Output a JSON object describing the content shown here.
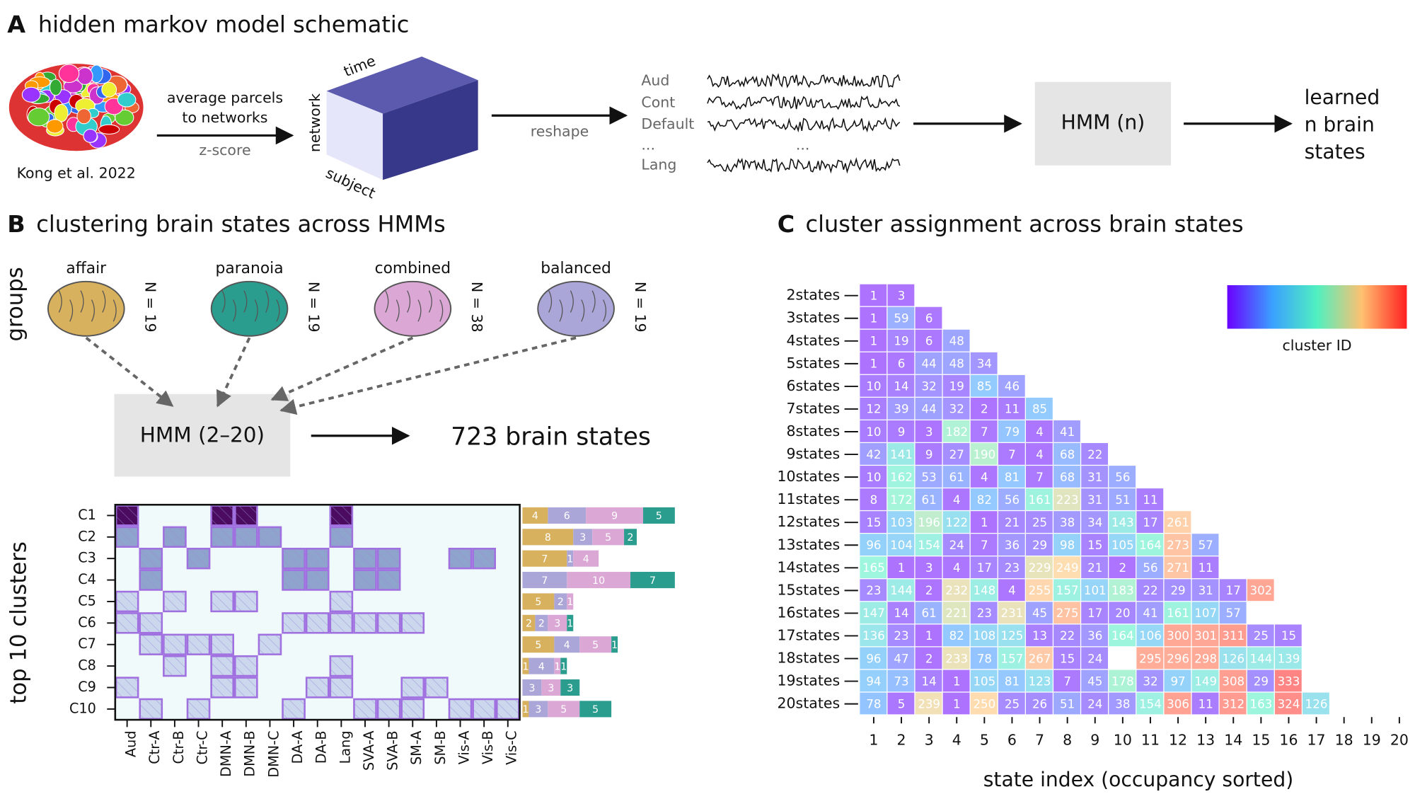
{
  "panel_a": {
    "letter": "A",
    "title": "hidden markov model schematic",
    "credit": "Kong et al. 2022",
    "step1": [
      "average parcels",
      "to networks"
    ],
    "zscore": "z-score",
    "cube": {
      "time": "time",
      "network": "network",
      "subject": "subject"
    },
    "reshape": "reshape",
    "signals": [
      "Aud",
      "Cont",
      "Default",
      "...",
      "Lang"
    ],
    "ellipsis": "...",
    "hmm": "HMM (n)",
    "output": [
      "learned",
      "n brain",
      "states"
    ]
  },
  "panel_b": {
    "letter": "B",
    "title": "clustering brain states across HMMs",
    "groups_label": "groups",
    "hmm": "HMM (2–20)",
    "result": "723 brain states",
    "ylabel": "top 10 clusters",
    "clusters": [
      "C1",
      "C2",
      "C3",
      "C4",
      "C5",
      "C6",
      "C7",
      "C8",
      "C9",
      "C10"
    ],
    "networks": [
      "Aud",
      "Ctr-A",
      "Ctr-B",
      "Ctr-C",
      "DMN-A",
      "DMN-B",
      "DMN-C",
      "DA-A",
      "DA-B",
      "Lang",
      "SVA-A",
      "SVA-B",
      "SM-A",
      "SM-B",
      "Vis-A",
      "Vis-B",
      "Vis-C"
    ],
    "level_colors": [
      "#f0fafa",
      "#cbd7ec",
      "#8fa4cc",
      "#4b0b5f"
    ],
    "membership": [
      [
        3,
        0,
        0,
        0,
        3,
        3,
        0,
        0,
        0,
        3,
        0,
        0,
        0,
        0,
        0,
        0,
        0
      ],
      [
        2,
        0,
        2,
        0,
        2,
        2,
        2,
        0,
        0,
        2,
        0,
        0,
        0,
        0,
        0,
        0,
        0
      ],
      [
        0,
        2,
        0,
        2,
        0,
        0,
        0,
        2,
        2,
        0,
        2,
        2,
        0,
        0,
        2,
        2,
        0
      ],
      [
        0,
        2,
        0,
        0,
        0,
        0,
        0,
        2,
        2,
        0,
        2,
        2,
        0,
        0,
        0,
        0,
        0
      ],
      [
        1,
        0,
        1,
        0,
        1,
        1,
        0,
        0,
        0,
        1,
        0,
        0,
        0,
        0,
        0,
        0,
        0
      ],
      [
        1,
        1,
        0,
        0,
        0,
        0,
        0,
        1,
        1,
        1,
        1,
        1,
        1,
        0,
        0,
        0,
        0
      ],
      [
        0,
        1,
        1,
        1,
        1,
        0,
        1,
        0,
        0,
        0,
        0,
        0,
        0,
        0,
        0,
        0,
        0
      ],
      [
        0,
        0,
        1,
        0,
        1,
        1,
        0,
        0,
        0,
        1,
        0,
        0,
        0,
        0,
        0,
        0,
        0
      ],
      [
        1,
        0,
        0,
        0,
        1,
        1,
        0,
        0,
        1,
        1,
        0,
        0,
        1,
        1,
        0,
        0,
        0
      ],
      [
        0,
        1,
        0,
        1,
        0,
        0,
        0,
        1,
        0,
        0,
        1,
        1,
        1,
        0,
        1,
        1,
        1
      ]
    ],
    "series": [
      {
        "name": "affair",
        "n_label": "N = 19",
        "color": "#d8b15e",
        "values": [
          4,
          8,
          7,
          0,
          5,
          2,
          5,
          1,
          0,
          1
        ]
      },
      {
        "name": "balanced",
        "n_label": "N = 19",
        "color": "#aaa7d8",
        "values": [
          6,
          3,
          1,
          7,
          2,
          2,
          4,
          4,
          3,
          3
        ]
      },
      {
        "name": "combined",
        "n_label": "N = 38",
        "color": "#dba8d5",
        "values": [
          9,
          5,
          4,
          10,
          1,
          3,
          5,
          1,
          3,
          5
        ]
      },
      {
        "name": "paranoia",
        "n_label": "N = 19",
        "color": "#2a9d8f",
        "values": [
          5,
          2,
          0,
          7,
          0,
          1,
          1,
          1,
          3,
          5
        ]
      }
    ]
  },
  "panel_c": {
    "letter": "C",
    "title": "cluster assignment across brain states",
    "colorbar_label": "cluster ID",
    "xlabel": "state index (occupancy sorted)",
    "rows": [
      "2states",
      "3states",
      "4states",
      "5states",
      "6states",
      "7states",
      "8states",
      "9states",
      "10states",
      "11states",
      "12states",
      "13states",
      "14states",
      "15states",
      "16states",
      "17states",
      "18states",
      "19states",
      "20states"
    ],
    "xticks": [
      1,
      2,
      3,
      4,
      5,
      6,
      7,
      8,
      9,
      10,
      11,
      12,
      13,
      14,
      15,
      16,
      17,
      18,
      19,
      20
    ],
    "values": [
      [
        1,
        3
      ],
      [
        1,
        59,
        6
      ],
      [
        1,
        19,
        6,
        48
      ],
      [
        1,
        6,
        44,
        48,
        34
      ],
      [
        10,
        14,
        32,
        19,
        85,
        46
      ],
      [
        12,
        39,
        44,
        32,
        2,
        11,
        85
      ],
      [
        10,
        9,
        3,
        182,
        7,
        79,
        4,
        41
      ],
      [
        42,
        141,
        9,
        27,
        190,
        7,
        4,
        68,
        22
      ],
      [
        10,
        162,
        53,
        61,
        4,
        81,
        7,
        68,
        31,
        56
      ],
      [
        8,
        172,
        61,
        4,
        82,
        56,
        161,
        223,
        31,
        51,
        11
      ],
      [
        15,
        103,
        196,
        122,
        1,
        21,
        25,
        38,
        34,
        143,
        17,
        261
      ],
      [
        96,
        104,
        154,
        24,
        7,
        36,
        29,
        98,
        15,
        105,
        164,
        273,
        57
      ],
      [
        165,
        1,
        3,
        4,
        17,
        23,
        229,
        249,
        21,
        2,
        56,
        271,
        11,
        null
      ],
      [
        23,
        144,
        2,
        232,
        148,
        4,
        255,
        157,
        101,
        183,
        22,
        29,
        31,
        17,
        302
      ],
      [
        147,
        14,
        61,
        221,
        23,
        231,
        45,
        275,
        17,
        20,
        41,
        161,
        107,
        57,
        null,
        null
      ],
      [
        136,
        23,
        1,
        82,
        108,
        125,
        13,
        22,
        36,
        164,
        106,
        300,
        301,
        311,
        25,
        15,
        null
      ],
      [
        96,
        47,
        2,
        233,
        78,
        157,
        267,
        15,
        24,
        null,
        295,
        296,
        298,
        126,
        144,
        139,
        null,
        null
      ],
      [
        94,
        73,
        14,
        1,
        105,
        81,
        123,
        7,
        45,
        178,
        32,
        97,
        149,
        308,
        29,
        333,
        null,
        null,
        null
      ],
      [
        78,
        5,
        239,
        1,
        250,
        25,
        26,
        51,
        24,
        38,
        154,
        306,
        11,
        312,
        163,
        324,
        126,
        null,
        null,
        null
      ]
    ]
  }
}
